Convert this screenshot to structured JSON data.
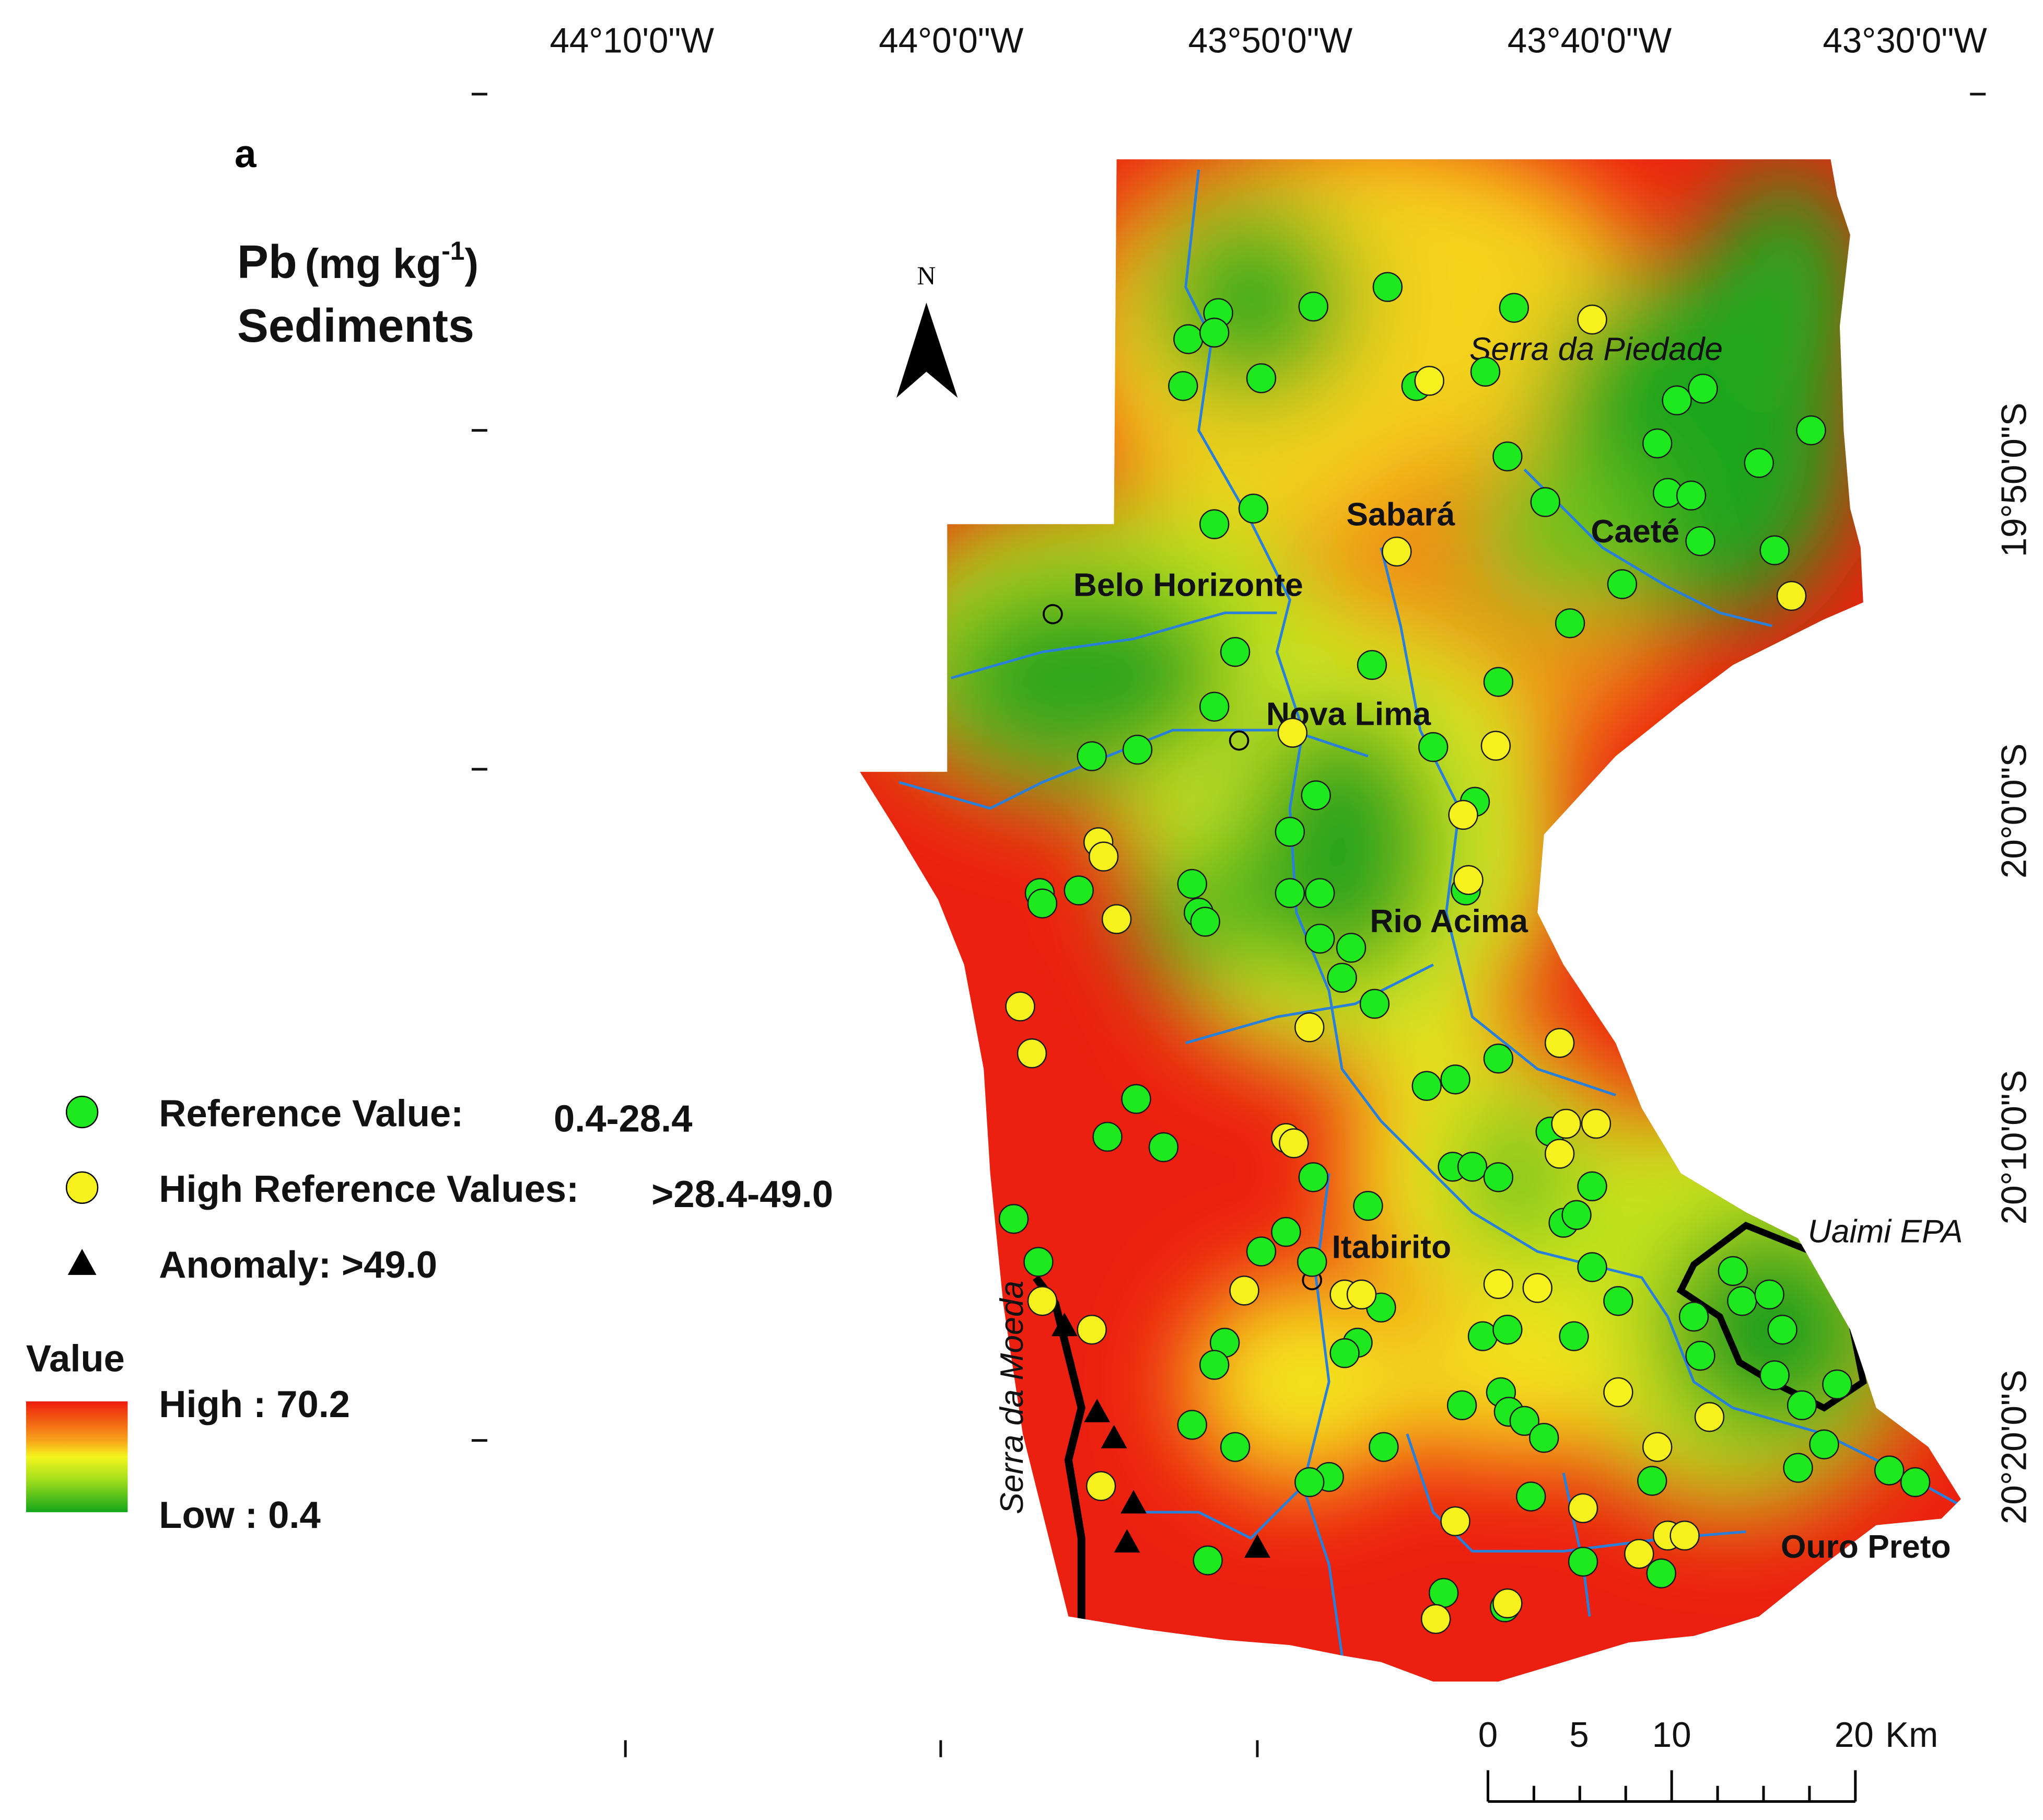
{
  "panel_label": "a",
  "title": {
    "element": "Pb",
    "unit_open": "(mg kg",
    "unit_exp": "-1",
    "unit_close": ")",
    "medium": "Sediments"
  },
  "longitude_labels": [
    "44°10'0\"W",
    "44°0'0\"W",
    "43°50'0\"W",
    "43°40'0\"W",
    "43°30'0\"W"
  ],
  "latitude_labels": [
    "19°50'0\"S",
    "20°0'0\"S",
    "20°10'0\"S",
    "20°20'0\"S"
  ],
  "north": "N",
  "legend": {
    "reference": {
      "label": "Reference Value:",
      "range": "0.4-28.4"
    },
    "high_reference": {
      "label": "High Reference Values:",
      "range": ">28.4-49.0"
    },
    "anomaly": {
      "label": "Anomaly: >49.0"
    },
    "value_title": "Value",
    "high": "High : 70.2",
    "low": "Low : 0.4"
  },
  "places": [
    "Serra da Piedade",
    "Sabará",
    "Caeté",
    "Belo Horizonte",
    "Nova Lima",
    "Rio Acima",
    "Itabirito",
    "Uaimi EPA",
    "Ouro Preto",
    "Serra da Moeda"
  ],
  "scale": {
    "ticks": [
      "0",
      "5",
      "10",
      "20"
    ],
    "unit": "Km"
  }
}
